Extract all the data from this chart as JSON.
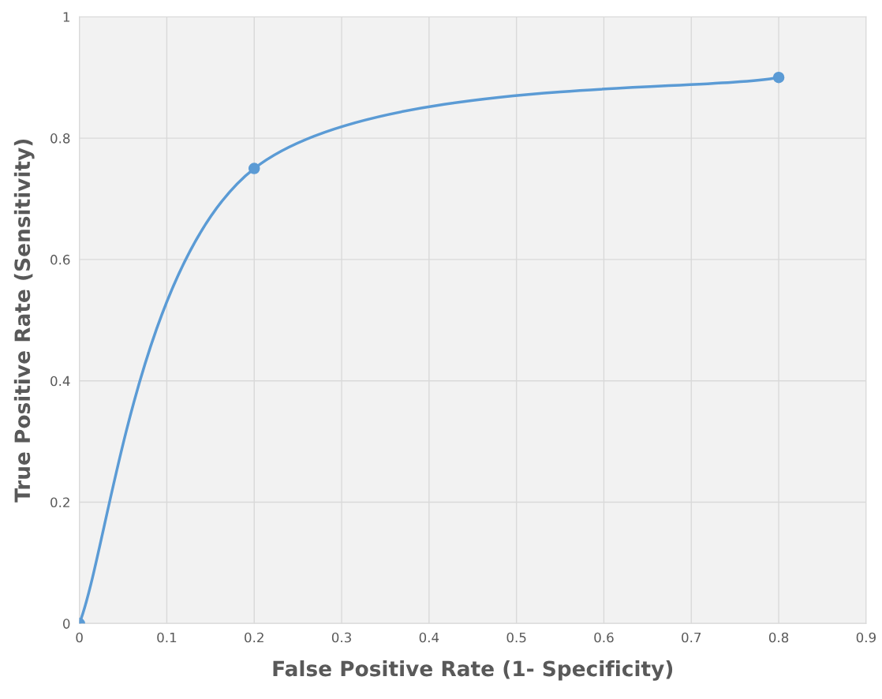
{
  "chart_data": {
    "type": "line",
    "xlabel": "False Positive Rate (1- Specificity)",
    "ylabel": "True Positive Rate (Sensitivity)",
    "x": [
      0,
      0.2,
      0.8
    ],
    "series": [
      {
        "color": "#5b9bd5",
        "values": [
          0,
          0.75,
          0.9
        ]
      }
    ],
    "xlim": [
      0,
      0.9
    ],
    "xticks": [
      0,
      0.1,
      0.2,
      0.3,
      0.4,
      0.5,
      0.6,
      0.7,
      0.8,
      0.9
    ],
    "ylim": [
      0,
      1
    ],
    "yticks": [
      0,
      0.2,
      0.4,
      0.6,
      0.8,
      1
    ],
    "grid": true,
    "marker": "circle",
    "line_style": "solid"
  }
}
